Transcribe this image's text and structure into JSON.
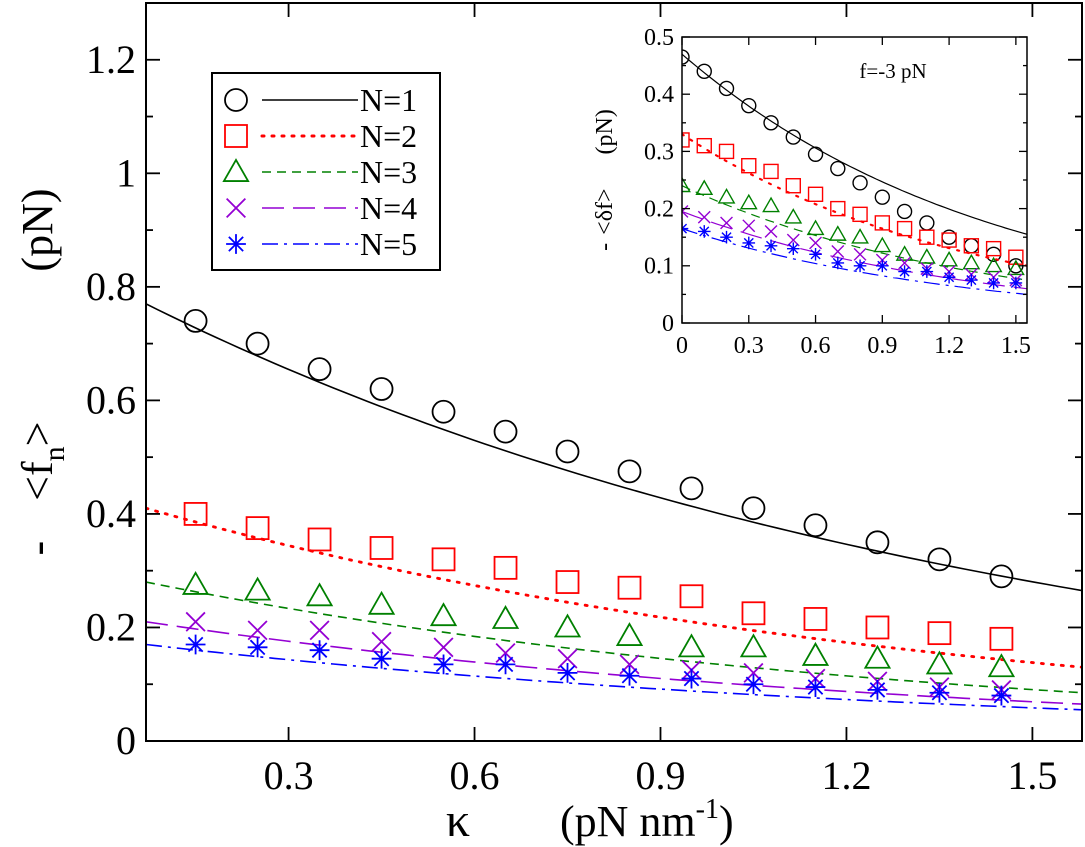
{
  "chart_data": [
    {
      "type": "scatter",
      "role": "main",
      "xlabel": {
        "main": "κ",
        "unit": "(pN nm",
        "sup": "-1",
        "close": ")"
      },
      "ylabel": {
        "minus": "-",
        "bracket_open": "<f",
        "sub": "n",
        "bracket_close": ">",
        "unit": "(pN)"
      },
      "xlim": [
        0.07,
        1.58
      ],
      "ylim": [
        0,
        1.3
      ],
      "xticks": [
        0.3,
        0.6,
        0.9,
        1.2,
        1.5
      ],
      "xtick_labels": [
        "0.3",
        "0.6",
        "0.9",
        "1.2",
        "1.5"
      ],
      "yticks": [
        0,
        0.2,
        0.4,
        0.6,
        0.8,
        1.0,
        1.2
      ],
      "ytick_labels": [
        "0",
        "0.2",
        "0.4",
        "0.6",
        "0.8",
        "1",
        "1.2"
      ],
      "legend_position": "top-left",
      "x": [
        0.15,
        0.25,
        0.35,
        0.45,
        0.55,
        0.65,
        0.75,
        0.85,
        0.95,
        1.05,
        1.15,
        1.25,
        1.35,
        1.45
      ],
      "series": [
        {
          "name": "N=1",
          "color": "#000000",
          "marker": "circle",
          "line": "solid",
          "points": [
            0.74,
            0.7,
            0.655,
            0.62,
            0.58,
            0.545,
            0.51,
            0.475,
            0.445,
            0.41,
            0.38,
            0.35,
            0.32,
            0.29
          ],
          "curve": [
            0.77,
            0.265
          ]
        },
        {
          "name": "N=2",
          "color": "#ff0000",
          "marker": "square",
          "line": "dotted",
          "points": [
            0.4,
            0.375,
            0.355,
            0.34,
            0.32,
            0.305,
            0.28,
            0.27,
            0.255,
            0.225,
            0.215,
            0.2,
            0.19,
            0.18
          ],
          "curve": [
            0.41,
            0.13
          ]
        },
        {
          "name": "N=3",
          "color": "#008000",
          "marker": "triangle",
          "line": "dashed",
          "points": [
            0.275,
            0.265,
            0.255,
            0.24,
            0.22,
            0.215,
            0.2,
            0.185,
            0.165,
            0.165,
            0.15,
            0.145,
            0.135,
            0.13
          ],
          "curve": [
            0.28,
            0.085
          ]
        },
        {
          "name": "N=4",
          "color": "#9400d3",
          "marker": "x",
          "line": "longdash",
          "points": [
            0.21,
            0.195,
            0.195,
            0.175,
            0.165,
            0.155,
            0.145,
            0.135,
            0.125,
            0.12,
            0.11,
            0.105,
            0.095,
            0.09
          ],
          "curve": [
            0.21,
            0.065
          ]
        },
        {
          "name": "N=5",
          "color": "#0000ff",
          "marker": "asterisk",
          "line": "dashdot",
          "points": [
            0.17,
            0.165,
            0.16,
            0.145,
            0.135,
            0.135,
            0.12,
            0.115,
            0.11,
            0.1,
            0.095,
            0.09,
            0.085,
            0.08
          ],
          "curve": [
            0.17,
            0.055
          ]
        }
      ]
    },
    {
      "type": "scatter",
      "role": "inset",
      "annotation": "f=-3 pN",
      "ylabel": {
        "minus": "-",
        "bracket_open": "<δf>",
        "unit": "(pN)"
      },
      "xlim": [
        0,
        1.55
      ],
      "ylim": [
        0,
        0.5
      ],
      "xticks": [
        0,
        0.3,
        0.6,
        0.9,
        1.2,
        1.5
      ],
      "xtick_labels": [
        "0",
        "0.3",
        "0.6",
        "0.9",
        "1.2",
        "1.5"
      ],
      "yticks": [
        0,
        0.1,
        0.2,
        0.3,
        0.4,
        0.5
      ],
      "ytick_labels": [
        "0",
        "0.1",
        "0.2",
        "0.3",
        "0.4",
        "0.5"
      ],
      "x": [
        0,
        0.1,
        0.2,
        0.3,
        0.4,
        0.5,
        0.6,
        0.7,
        0.8,
        0.9,
        1.0,
        1.1,
        1.2,
        1.3,
        1.4,
        1.5
      ],
      "series": [
        {
          "color": "#000000",
          "marker": "circle",
          "line": "solid",
          "points": [
            0.465,
            0.44,
            0.41,
            0.38,
            0.35,
            0.325,
            0.295,
            0.27,
            0.245,
            0.22,
            0.195,
            0.175,
            0.15,
            0.135,
            0.12,
            0.1
          ],
          "curve": [
            0.47,
            0.155
          ]
        },
        {
          "color": "#ff0000",
          "marker": "square",
          "line": "dotted",
          "points": [
            0.32,
            0.31,
            0.3,
            0.275,
            0.265,
            0.24,
            0.225,
            0.2,
            0.19,
            0.175,
            0.165,
            0.15,
            0.145,
            0.135,
            0.13,
            0.115
          ],
          "curve": [
            0.33,
            0.1
          ]
        },
        {
          "color": "#008000",
          "marker": "triangle",
          "line": "dashed",
          "points": [
            0.24,
            0.235,
            0.22,
            0.21,
            0.205,
            0.185,
            0.165,
            0.155,
            0.15,
            0.135,
            0.12,
            0.115,
            0.11,
            0.105,
            0.1,
            0.095
          ],
          "curve": [
            0.24,
            0.075
          ]
        },
        {
          "color": "#9400d3",
          "marker": "x",
          "line": "longdash",
          "points": [
            0.195,
            0.185,
            0.175,
            0.17,
            0.16,
            0.145,
            0.14,
            0.125,
            0.12,
            0.11,
            0.105,
            0.095,
            0.09,
            0.085,
            0.08,
            0.075
          ],
          "curve": [
            0.195,
            0.06
          ]
        },
        {
          "color": "#0000ff",
          "marker": "asterisk",
          "line": "dashdot",
          "points": [
            0.165,
            0.16,
            0.15,
            0.14,
            0.135,
            0.13,
            0.12,
            0.105,
            0.1,
            0.1,
            0.09,
            0.09,
            0.08,
            0.075,
            0.07,
            0.07
          ],
          "curve": [
            0.165,
            0.05
          ]
        }
      ]
    }
  ]
}
